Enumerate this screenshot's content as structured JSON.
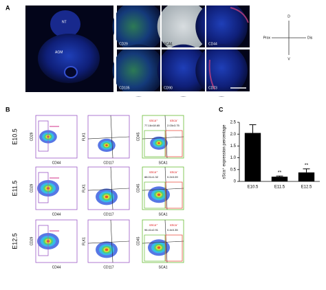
{
  "panel_a": {
    "label": "A",
    "overview_labels": [
      "NT",
      "AGM"
    ],
    "tile_labels": [
      "CD29",
      "SCA1",
      "CD44",
      "CD105",
      "CD90",
      "CD73"
    ],
    "compass": {
      "top": "D",
      "bottom": "V",
      "left": "Prox",
      "right": "Dis"
    }
  },
  "panel_b": {
    "label": "B",
    "gate_names": [
      "sSca⁺",
      "sSca⁻"
    ],
    "plots": [
      {
        "y": "CD29",
        "x": "CD44"
      },
      {
        "y": "FLK1",
        "x": "CD117"
      },
      {
        "y": "CD45",
        "x": "SCA1"
      }
    ],
    "rows": [
      {
        "stage": "E10.5",
        "gates": [
          "77.16±18.65",
          "2.03±3.75"
        ]
      },
      {
        "stage": "E11.5",
        "gates": [
          "88.01±1.32",
          "0.2±0.09"
        ]
      },
      {
        "stage": "E12.5",
        "gates": [
          "96.41±2.91",
          "0.4±0.35"
        ]
      }
    ]
  },
  "chart_data": {
    "type": "bar",
    "panel_label": "C",
    "ylabel": "sSca⁺ expression percentage",
    "categories": [
      "E10.5",
      "E11.5",
      "E12.5"
    ],
    "values": [
      2.05,
      0.2,
      0.38
    ],
    "errors": [
      0.35,
      0.03,
      0.15
    ],
    "annotations": [
      null,
      "**",
      "**"
    ],
    "color": "#000000",
    "ylim": [
      0,
      2.5
    ],
    "yticks": [
      0,
      0.5,
      {
        "value": 1,
        "label": "1.0"
      },
      1.5,
      {
        "value": 2,
        "label": "2.0"
      },
      2.5
    ]
  }
}
